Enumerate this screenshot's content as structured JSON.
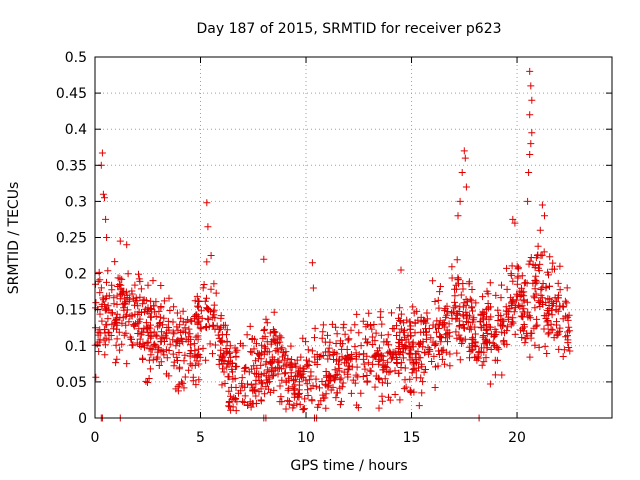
{
  "chart_data": {
    "type": "scatter",
    "title": "Day 187 of 2015, SRMTID for receiver p623",
    "xlabel": "GPS time / hours",
    "ylabel": "SRMTID / TECUs",
    "xlim": [
      0,
      24.5
    ],
    "ylim": [
      0,
      0.5
    ],
    "xticks": [
      0,
      5,
      10,
      15,
      20
    ],
    "xtick_labels": [
      "0",
      "5",
      "10",
      "15",
      "20"
    ],
    "yticks": [
      0,
      0.05,
      0.1,
      0.15,
      0.2,
      0.25,
      0.3,
      0.35,
      0.4,
      0.45,
      0.5
    ],
    "ytick_labels": [
      "0",
      "0.05",
      "0.1",
      "0.15",
      "0.2",
      "0.25",
      "0.3",
      "0.35",
      "0.4",
      "0.45",
      "0.5"
    ],
    "grid": true,
    "marker": "plus",
    "color": "#e00000",
    "series": [
      {
        "name": "SRMTID",
        "trend_hours": [
          0.0,
          0.5,
          1.0,
          1.5,
          2.0,
          2.5,
          3.0,
          3.5,
          4.0,
          4.5,
          5.0,
          5.5,
          6.0,
          6.5,
          7.0,
          7.5,
          8.0,
          8.5,
          9.0,
          9.5,
          10.0,
          10.5,
          11.0,
          11.5,
          12.0,
          12.5,
          13.0,
          13.5,
          14.0,
          14.5,
          15.0,
          15.5,
          16.0,
          16.5,
          17.0,
          17.5,
          18.0,
          18.5,
          19.0,
          19.5,
          20.0,
          20.5,
          21.0,
          21.5,
          22.0,
          22.5
        ],
        "trend_tecu": [
          0.13,
          0.15,
          0.14,
          0.15,
          0.14,
          0.12,
          0.13,
          0.11,
          0.09,
          0.11,
          0.13,
          0.16,
          0.1,
          0.05,
          0.05,
          0.06,
          0.08,
          0.09,
          0.06,
          0.05,
          0.06,
          0.07,
          0.065,
          0.07,
          0.08,
          0.08,
          0.09,
          0.08,
          0.09,
          0.1,
          0.09,
          0.09,
          0.11,
          0.13,
          0.15,
          0.14,
          0.12,
          0.12,
          0.12,
          0.14,
          0.17,
          0.15,
          0.18,
          0.16,
          0.15,
          0.11
        ],
        "spikes": [
          {
            "x": 0.35,
            "y": 0.367
          },
          {
            "x": 0.3,
            "y": 0.35
          },
          {
            "x": 0.4,
            "y": 0.31
          },
          {
            "x": 0.45,
            "y": 0.305
          },
          {
            "x": 0.5,
            "y": 0.275
          },
          {
            "x": 0.55,
            "y": 0.25
          },
          {
            "x": 1.2,
            "y": 0.245
          },
          {
            "x": 1.5,
            "y": 0.24
          },
          {
            "x": 5.3,
            "y": 0.298
          },
          {
            "x": 5.35,
            "y": 0.265
          },
          {
            "x": 5.5,
            "y": 0.225
          },
          {
            "x": 8.0,
            "y": 0.22
          },
          {
            "x": 10.3,
            "y": 0.215
          },
          {
            "x": 10.35,
            "y": 0.18
          },
          {
            "x": 14.5,
            "y": 0.205
          },
          {
            "x": 16.0,
            "y": 0.19
          },
          {
            "x": 17.5,
            "y": 0.37
          },
          {
            "x": 17.55,
            "y": 0.36
          },
          {
            "x": 17.4,
            "y": 0.34
          },
          {
            "x": 17.6,
            "y": 0.32
          },
          {
            "x": 17.3,
            "y": 0.3
          },
          {
            "x": 17.2,
            "y": 0.28
          },
          {
            "x": 19.8,
            "y": 0.275
          },
          {
            "x": 19.9,
            "y": 0.27
          },
          {
            "x": 20.6,
            "y": 0.48
          },
          {
            "x": 20.65,
            "y": 0.46
          },
          {
            "x": 20.7,
            "y": 0.44
          },
          {
            "x": 20.6,
            "y": 0.42
          },
          {
            "x": 20.7,
            "y": 0.395
          },
          {
            "x": 20.65,
            "y": 0.38
          },
          {
            "x": 20.6,
            "y": 0.365
          },
          {
            "x": 20.55,
            "y": 0.34
          },
          {
            "x": 20.5,
            "y": 0.3
          },
          {
            "x": 21.2,
            "y": 0.295
          },
          {
            "x": 21.3,
            "y": 0.28
          },
          {
            "x": 21.1,
            "y": 0.26
          }
        ],
        "zero_points_hours": [
          0.3,
          0.35,
          1.2,
          8.0,
          8.1,
          10.4,
          10.5,
          18.2
        ]
      }
    ]
  }
}
